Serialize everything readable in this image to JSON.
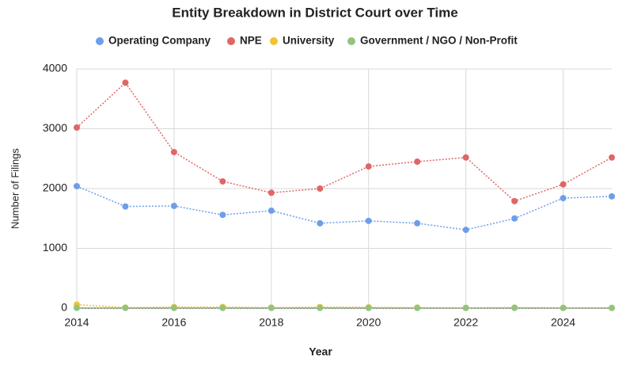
{
  "chart_data": {
    "type": "line",
    "title": "Entity Breakdown in District Court over Time",
    "x_label": "Year",
    "y_label": "Number of Filings",
    "x": [
      2014,
      2015,
      2016,
      2017,
      2018,
      2019,
      2020,
      2021,
      2022,
      2023,
      2024,
      2025
    ],
    "series": [
      {
        "name": "Operating Company",
        "color": "#6d9eeb",
        "values": [
          2040,
          1700,
          1710,
          1560,
          1630,
          1420,
          1460,
          1420,
          1310,
          1500,
          1840,
          1870
        ]
      },
      {
        "name": "NPE",
        "color": "#e06666",
        "values": [
          3020,
          3770,
          2610,
          2120,
          1930,
          2000,
          2370,
          2450,
          2520,
          1790,
          2070,
          2520
        ]
      },
      {
        "name": "University",
        "color": "#f1c232",
        "values": [
          60,
          10,
          20,
          20,
          10,
          20,
          15,
          10,
          5,
          10,
          5,
          5
        ]
      },
      {
        "name": "Government / NGO / Non-Profit",
        "color": "#93c47d",
        "values": [
          5,
          5,
          5,
          5,
          5,
          5,
          5,
          5,
          5,
          5,
          5,
          5
        ]
      }
    ],
    "xlim": [
      2014,
      2025
    ],
    "xticks": [
      2014,
      2016,
      2018,
      2020,
      2022,
      2024
    ],
    "ylim": [
      0,
      4000
    ],
    "yticks": [
      0,
      1000,
      2000,
      3000,
      4000
    ],
    "grid": true,
    "legend": "top",
    "line_style": "dotted"
  }
}
